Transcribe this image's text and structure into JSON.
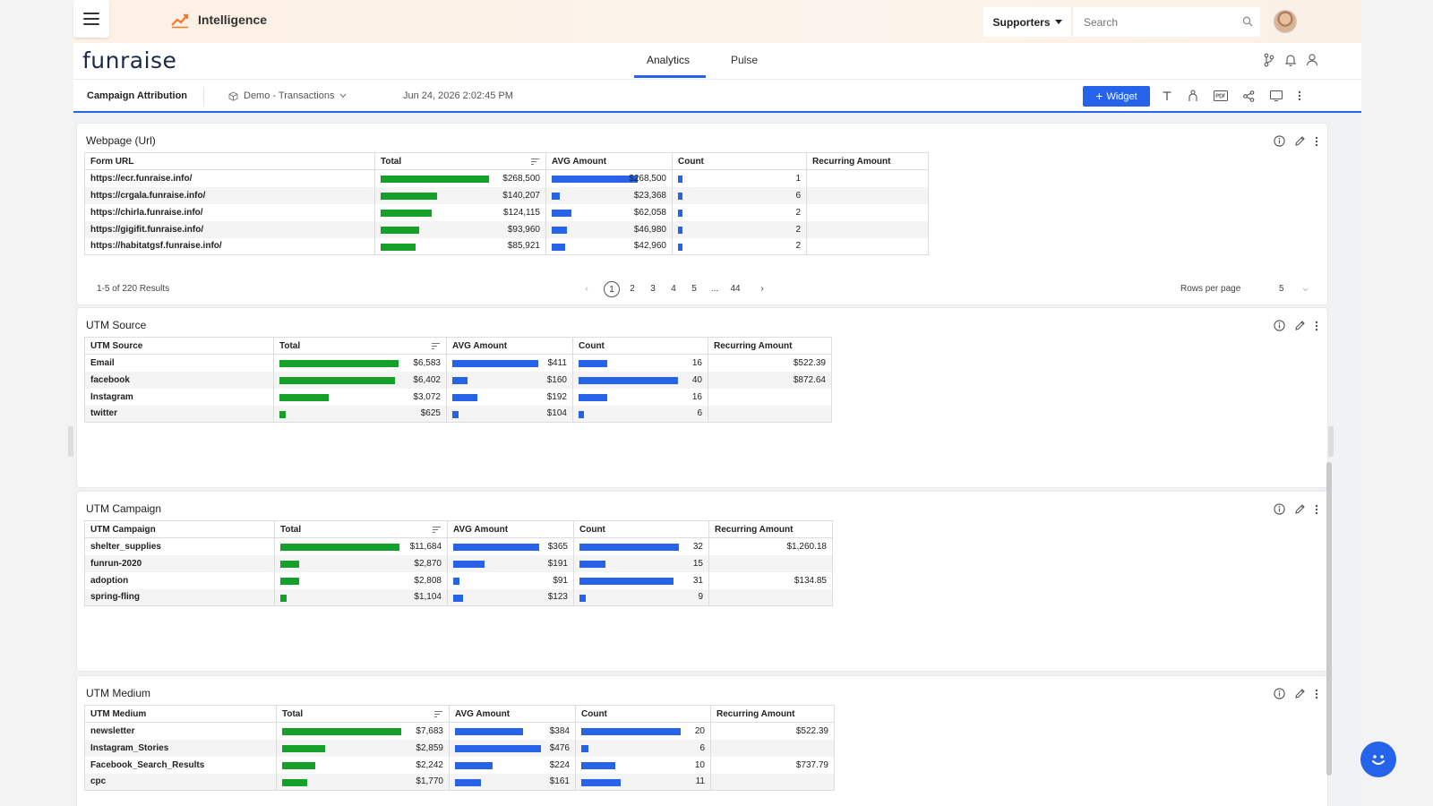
{
  "topbar": {
    "app_title": "Intelligence",
    "supporters_label": "Supporters",
    "search_placeholder": "Search"
  },
  "header": {
    "logo": "funraise",
    "tabs": [
      {
        "label": "Analytics",
        "active": true
      },
      {
        "label": "Pulse",
        "active": false
      }
    ]
  },
  "toolbar": {
    "title": "Campaign Attribution",
    "source": "Demo - Transactions",
    "date": "Jun 24, 2026 2:02:45 PM",
    "widget_label": "Widget"
  },
  "colors": {
    "accent": "#2563eb",
    "green_bar": "#15a02a",
    "blue_bar": "#2663e8"
  },
  "webpage": {
    "title": "Webpage (Url)",
    "headers": [
      "Form URL",
      "Total",
      "AVG Amount",
      "Count",
      "Recurring Amount"
    ],
    "rows": [
      {
        "label": "https://ecr.funraise.info/",
        "total": "$268,500",
        "total_frac": 0.92,
        "avg": "$268,500",
        "avg_frac": 1.0,
        "count": "1",
        "count_frac": 0.04,
        "recurring": ""
      },
      {
        "label": "https://crgala.funraise.info/",
        "total": "$140,207",
        "total_frac": 0.48,
        "avg": "$23,368",
        "avg_frac": 0.09,
        "count": "6",
        "count_frac": 0.04,
        "recurring": ""
      },
      {
        "label": "https://chirla.funraise.info/",
        "total": "$124,115",
        "total_frac": 0.43,
        "avg": "$62,058",
        "avg_frac": 0.23,
        "count": "2",
        "count_frac": 0.04,
        "recurring": ""
      },
      {
        "label": "https://gigifit.funraise.info/",
        "total": "$93,960",
        "total_frac": 0.33,
        "avg": "$46,980",
        "avg_frac": 0.18,
        "count": "2",
        "count_frac": 0.04,
        "recurring": ""
      },
      {
        "label": "https://habitatgsf.funraise.info/",
        "total": "$85,921",
        "total_frac": 0.3,
        "avg": "$42,960",
        "avg_frac": 0.16,
        "count": "2",
        "count_frac": 0.04,
        "recurring": ""
      }
    ],
    "results": "1-5 of 220 Results",
    "pages": [
      "1",
      "2",
      "3",
      "4",
      "5",
      "...",
      "44"
    ],
    "rows_per_page_label": "Rows per page",
    "rows_per_page_value": "5"
  },
  "utm_source": {
    "title": "UTM Source",
    "headers": [
      "UTM Source",
      "Total",
      "AVG Amount",
      "Count",
      "Recurring Amount"
    ],
    "rows": [
      {
        "label": "Email",
        "total": "$6,583",
        "total_frac": 1.0,
        "avg": "$411",
        "avg_frac": 1.0,
        "count": "16",
        "count_frac": 0.29,
        "recurring": "$522.39"
      },
      {
        "label": "facebook",
        "total": "$6,402",
        "total_frac": 0.97,
        "avg": "$160",
        "avg_frac": 0.18,
        "count": "40",
        "count_frac": 1.0,
        "recurring": "$872.64"
      },
      {
        "label": "Instagram",
        "total": "$3,072",
        "total_frac": 0.41,
        "avg": "$192",
        "avg_frac": 0.29,
        "count": "16",
        "count_frac": 0.29,
        "recurring": ""
      },
      {
        "label": "twitter",
        "total": "$625",
        "total_frac": 0.05,
        "avg": "$104",
        "avg_frac": 0.07,
        "count": "6",
        "count_frac": 0.05,
        "recurring": ""
      }
    ]
  },
  "utm_campaign": {
    "title": "UTM Campaign",
    "headers": [
      "UTM Campaign",
      "Total",
      "AVG Amount",
      "Count",
      "Recurring Amount"
    ],
    "rows": [
      {
        "label": "shelter_supplies",
        "total": "$11,684",
        "total_frac": 1.0,
        "avg": "$365",
        "avg_frac": 1.0,
        "count": "32",
        "count_frac": 1.0,
        "recurring": "$1,260.18"
      },
      {
        "label": "funrun-2020",
        "total": "$2,870",
        "total_frac": 0.16,
        "avg": "$191",
        "avg_frac": 0.37,
        "count": "15",
        "count_frac": 0.26,
        "recurring": ""
      },
      {
        "label": "adoption",
        "total": "$2,808",
        "total_frac": 0.16,
        "avg": "$91",
        "avg_frac": 0.07,
        "count": "31",
        "count_frac": 0.95,
        "recurring": "$134.85"
      },
      {
        "label": "spring-fling",
        "total": "$1,104",
        "total_frac": 0.05,
        "avg": "$123",
        "avg_frac": 0.12,
        "count": "9",
        "count_frac": 0.06,
        "recurring": ""
      }
    ]
  },
  "utm_medium": {
    "title": "UTM Medium",
    "headers": [
      "UTM Medium",
      "Total",
      "AVG Amount",
      "Count",
      "Recurring Amount"
    ],
    "rows": [
      {
        "label": "newsletter",
        "total": "$7,683",
        "total_frac": 1.0,
        "avg": "$384",
        "avg_frac": 0.8,
        "count": "20",
        "count_frac": 1.0,
        "recurring": "$522.39"
      },
      {
        "label": "Instagram_Stories",
        "total": "$2,859",
        "total_frac": 0.36,
        "avg": "$476",
        "avg_frac": 1.0,
        "count": "6",
        "count_frac": 0.07,
        "recurring": ""
      },
      {
        "label": "Facebook_Search_Results",
        "total": "$2,242",
        "total_frac": 0.28,
        "avg": "$224",
        "avg_frac": 0.44,
        "count": "10",
        "count_frac": 0.34,
        "recurring": "$737.79"
      },
      {
        "label": "cpc",
        "total": "$1,770",
        "total_frac": 0.21,
        "avg": "$161",
        "avg_frac": 0.3,
        "count": "11",
        "count_frac": 0.4,
        "recurring": ""
      }
    ]
  }
}
